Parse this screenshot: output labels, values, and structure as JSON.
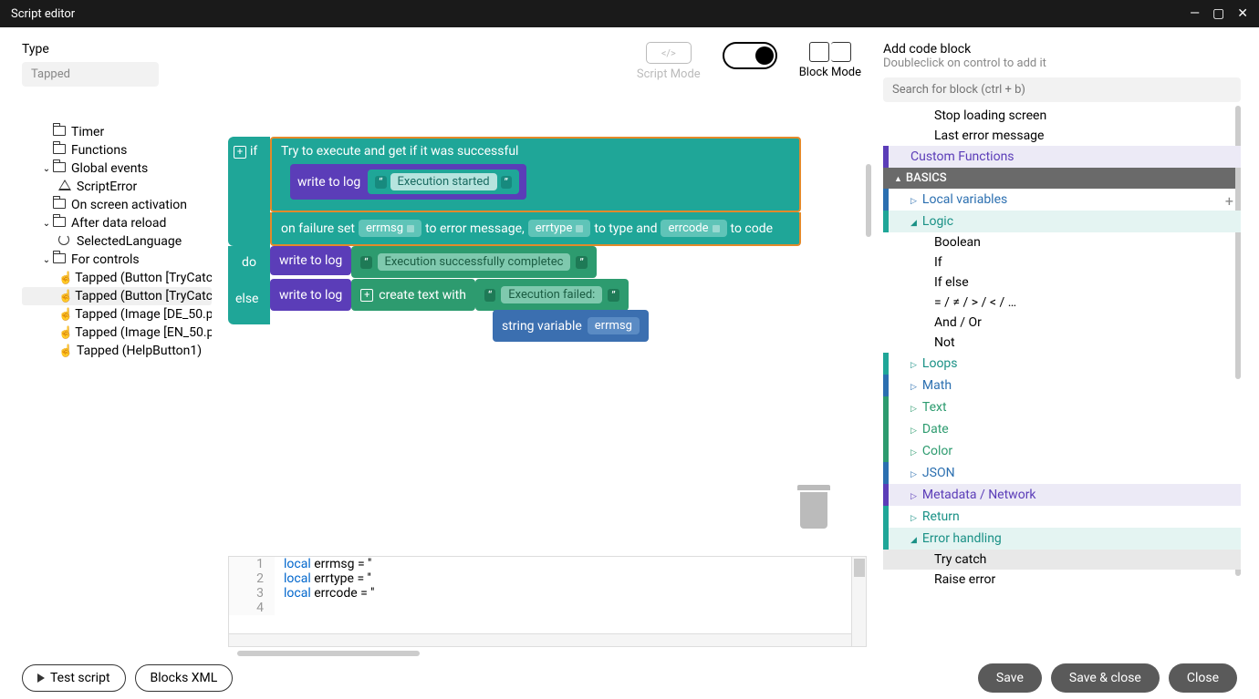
{
  "window": {
    "title": "Script editor"
  },
  "typePanel": {
    "label": "Type",
    "value": "Tapped"
  },
  "tree": [
    {
      "label": "Timer",
      "icon": "folder",
      "indent": 1
    },
    {
      "label": "Functions",
      "icon": "folder",
      "indent": 1
    },
    {
      "label": "Global events",
      "icon": "folder",
      "indent": 1,
      "chev": "down"
    },
    {
      "label": "ScriptError",
      "icon": "warn",
      "indent": 2
    },
    {
      "label": "On screen activation",
      "icon": "folder",
      "indent": 1
    },
    {
      "label": "After data reload",
      "icon": "folder",
      "indent": 1,
      "chev": "down"
    },
    {
      "label": "SelectedLanguage",
      "icon": "refresh",
      "indent": 2
    },
    {
      "label": "For controls",
      "icon": "folder",
      "indent": 1,
      "chev": "down"
    },
    {
      "label": "Tapped (Button [TryCatc",
      "icon": "hand",
      "indent": 2
    },
    {
      "label": "Tapped (Button [TryCatc",
      "icon": "hand",
      "indent": 2,
      "selected": true
    },
    {
      "label": "Tapped (Image [DE_50.p",
      "icon": "hand",
      "indent": 2
    },
    {
      "label": "Tapped (Image [EN_50.p",
      "icon": "hand",
      "indent": 2
    },
    {
      "label": "Tapped (HelpButton1)",
      "icon": "hand",
      "indent": 2
    }
  ],
  "modes": {
    "script": "Script Mode",
    "block": "Block Mode"
  },
  "blocks": {
    "if": "if",
    "try_text": "Try to execute and get if it was successful",
    "write_log": "write to log",
    "exec_started": "Execution started",
    "failure_set": "on failure set",
    "errmsg": "errmsg",
    "to_err_msg": "to error message,",
    "errtype": "errtype",
    "to_type_and": "to type and",
    "errcode": "errcode",
    "to_code": "to code",
    "do": "do",
    "else": "else",
    "exec_complete": "Execution successfully completec",
    "create_text": "create text with",
    "exec_failed": "Execution failed:",
    "string_var": "string variable"
  },
  "code": [
    {
      "n": "1",
      "kw": "local",
      "rest": " errmsg = ''"
    },
    {
      "n": "2",
      "kw": "local",
      "rest": " errtype = ''"
    },
    {
      "n": "3",
      "kw": "local",
      "rest": " errcode = ''"
    },
    {
      "n": "4",
      "kw": "",
      "rest": ""
    }
  ],
  "right": {
    "add": "Add code block",
    "hint": "Doubleclick on control to add it",
    "search_ph": "Search for block (ctrl + b)",
    "items_top": [
      "Stop loading screen",
      "Last error message"
    ],
    "custom": "Custom Functions",
    "basics": "BASICS",
    "local_vars": "Local variables",
    "logic": "Logic",
    "logic_items": [
      "Boolean",
      "If",
      "If else",
      "= / ≠ / > / < / …",
      "And / Or",
      "Not"
    ],
    "loops": "Loops",
    "math": "Math",
    "text": "Text",
    "date": "Date",
    "color": "Color",
    "json": "JSON",
    "meta": "Metadata / Network",
    "return": "Return",
    "error": "Error handling",
    "error_items": [
      "Try catch",
      "Raise error"
    ]
  },
  "footer": {
    "test": "Test script",
    "blocks_xml": "Blocks XML",
    "save": "Save",
    "save_close": "Save & close",
    "close": "Close"
  },
  "colors": {
    "teal": "#1fa698",
    "purple": "#5b3db8",
    "green": "#2d9b6f",
    "blue": "#3b6fb0",
    "orange_border": "#e38a2a"
  }
}
